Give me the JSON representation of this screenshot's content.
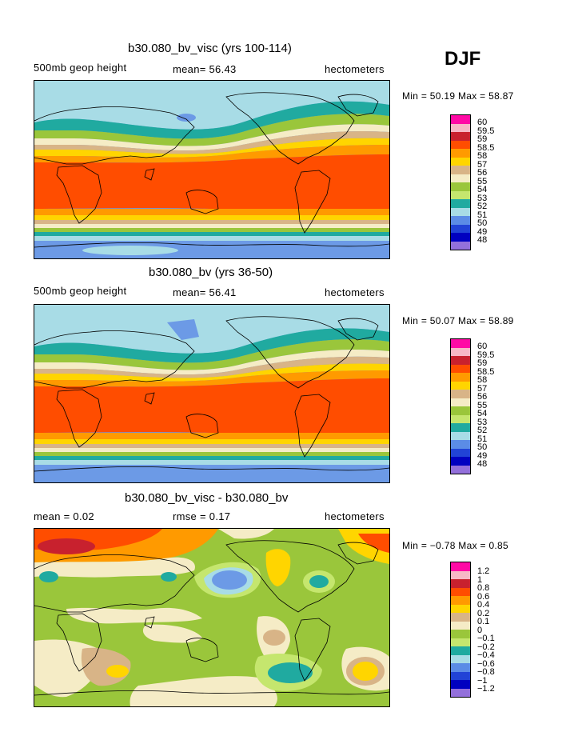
{
  "season": "DJF",
  "panels": [
    {
      "title": "b30.080_bv_visc (yrs 100-114)",
      "left_label": "500mb  geop  height",
      "center_label": "mean=   56.43",
      "right_label": "hectometers",
      "minmax": "Min =   50.19  Max =   58.87",
      "legend": {
        "labels": [
          "60",
          "59.5",
          "59",
          "58.5",
          "58",
          "57",
          "56",
          "55",
          "54",
          "53",
          "52",
          "51",
          "50",
          "49",
          "48"
        ],
        "colors": [
          "#ff0aa5",
          "#f7b8c6",
          "#c8212e",
          "#ff4d00",
          "#ff9a00",
          "#ffd500",
          "#d8b487",
          "#f5ecc6",
          "#9ac63b",
          "#c5e66e",
          "#20aaa0",
          "#a8dce6",
          "#5b8ce6",
          "#2143d6",
          "#0000c0",
          "#9370db"
        ]
      }
    },
    {
      "title": "b30.080_bv (yrs 36-50)",
      "left_label": "500mb  geop  height",
      "center_label": "mean=   56.41",
      "right_label": "hectometers",
      "minmax": "Min =   50.07  Max =   58.89",
      "legend": {
        "labels": [
          "60",
          "59.5",
          "59",
          "58.5",
          "58",
          "57",
          "56",
          "55",
          "54",
          "53",
          "52",
          "51",
          "50",
          "49",
          "48"
        ],
        "colors": [
          "#ff0aa5",
          "#f7b8c6",
          "#c8212e",
          "#ff4d00",
          "#ff9a00",
          "#ffd500",
          "#d8b487",
          "#f5ecc6",
          "#9ac63b",
          "#c5e66e",
          "#20aaa0",
          "#a8dce6",
          "#5b8ce6",
          "#2143d6",
          "#0000c0",
          "#9370db"
        ]
      }
    },
    {
      "title": "b30.080_bv_visc - b30.080_bv",
      "left_label": "mean =    0.02",
      "center_label": "rmse =    0.17",
      "right_label": "hectometers",
      "minmax": "Min =   −0.78  Max =    0.85",
      "legend": {
        "labels": [
          "1.2",
          "1",
          "0.8",
          "0.6",
          "0.4",
          "0.2",
          "0.1",
          "0",
          "−0.1",
          "−0.2",
          "−0.4",
          "−0.6",
          "−0.8",
          "−1",
          "−1.2"
        ],
        "colors": [
          "#ff0aa5",
          "#f7b8c6",
          "#c8212e",
          "#ff4d00",
          "#ff9a00",
          "#ffd500",
          "#d8b487",
          "#f5ecc6",
          "#9ac63b",
          "#c5e66e",
          "#20aaa0",
          "#a8dce6",
          "#5b8ce6",
          "#2143d6",
          "#0000c0",
          "#9370db"
        ]
      }
    }
  ]
}
